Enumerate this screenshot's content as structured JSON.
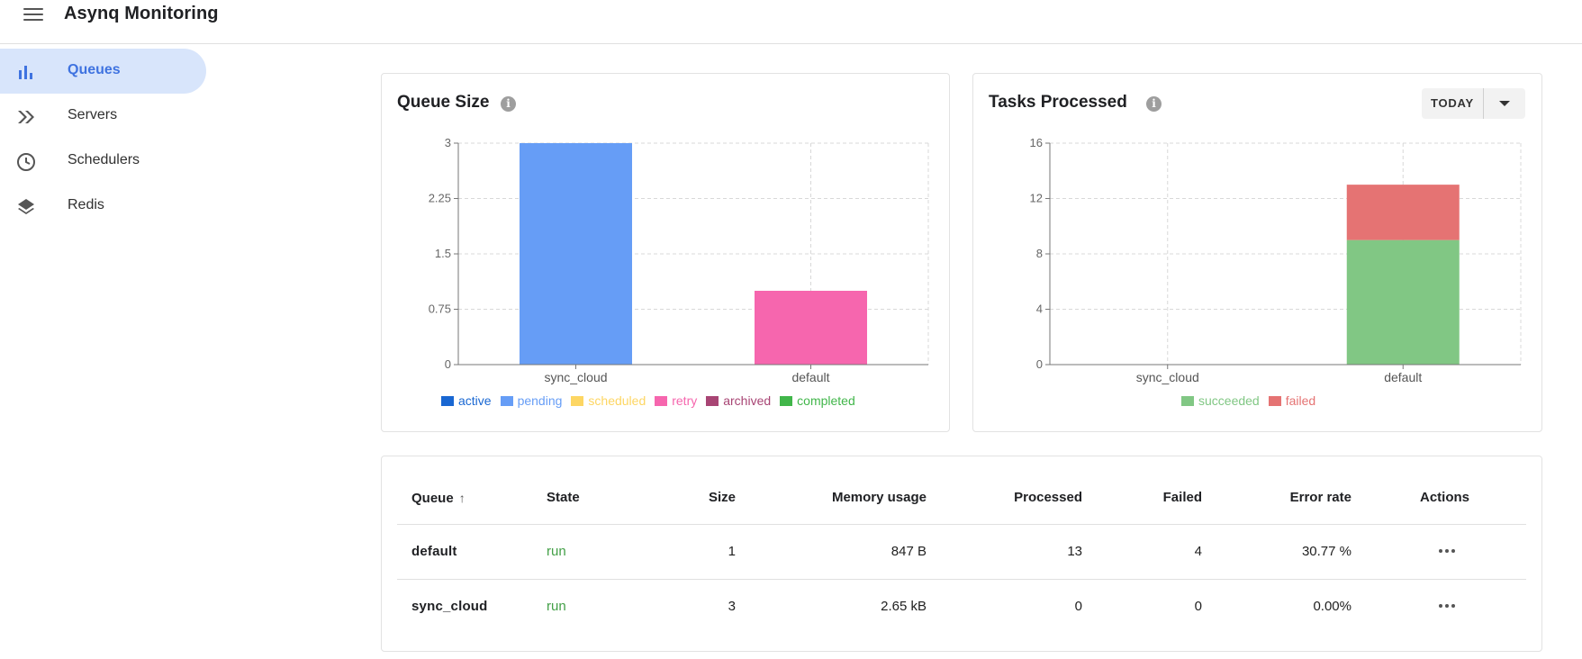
{
  "app": {
    "title": "Asynq Monitoring",
    "menu_icon": "menu-icon"
  },
  "sidebar": {
    "items": [
      {
        "label": "Queues",
        "icon": "bar-chart-icon",
        "active": true
      },
      {
        "label": "Servers",
        "icon": "double-chevron-icon",
        "active": false
      },
      {
        "label": "Schedulers",
        "icon": "clock-icon",
        "active": false
      },
      {
        "label": "Redis",
        "icon": "layers-icon",
        "active": false
      }
    ]
  },
  "queue_size_card": {
    "title": "Queue Size",
    "info_icon": "info-icon"
  },
  "tasks_processed_card": {
    "title": "Tasks Processed",
    "info_icon": "info-icon",
    "range_label": "TODAY"
  },
  "chart_data": [
    {
      "type": "bar",
      "title": "Queue Size",
      "categories": [
        "sync_cloud",
        "default"
      ],
      "ylim": [
        0,
        3
      ],
      "yticks": [
        "0",
        "0.75",
        "1.5",
        "2.25",
        "3"
      ],
      "stacked": true,
      "grid": true,
      "legend_position": "bottom",
      "series": [
        {
          "name": "active",
          "color": "#1967d2",
          "values": [
            0,
            0
          ]
        },
        {
          "name": "pending",
          "color": "#669df6",
          "values": [
            3,
            0
          ]
        },
        {
          "name": "scheduled",
          "color": "#fdd663",
          "values": [
            0,
            0
          ]
        },
        {
          "name": "retry",
          "color": "#f666ae",
          "values": [
            0,
            1
          ]
        },
        {
          "name": "archived",
          "color": "#a84574",
          "values": [
            0,
            0
          ]
        },
        {
          "name": "completed",
          "color": "#41b64a",
          "values": [
            0,
            0
          ]
        }
      ]
    },
    {
      "type": "bar",
      "title": "Tasks Processed",
      "categories": [
        "sync_cloud",
        "default"
      ],
      "ylim": [
        0,
        16
      ],
      "yticks": [
        "0",
        "4",
        "8",
        "12",
        "16"
      ],
      "stacked": true,
      "grid": true,
      "legend_position": "bottom",
      "series": [
        {
          "name": "succeeded",
          "color": "#81c784",
          "values": [
            0,
            9
          ]
        },
        {
          "name": "failed",
          "color": "#e57373",
          "values": [
            0,
            4
          ]
        }
      ]
    }
  ],
  "table": {
    "headers": {
      "queue": "Queue",
      "state": "State",
      "size": "Size",
      "memory": "Memory usage",
      "processed": "Processed",
      "failed": "Failed",
      "error_rate": "Error rate",
      "actions": "Actions"
    },
    "sort_icon": "arrow-up-icon",
    "rows": [
      {
        "queue": "default",
        "state": "run",
        "size": "1",
        "memory": "847 B",
        "processed": "13",
        "failed": "4",
        "error_rate": "30.77 %"
      },
      {
        "queue": "sync_cloud",
        "state": "run",
        "size": "3",
        "memory": "2.65 kB",
        "processed": "0",
        "failed": "0",
        "error_rate": "0.00%"
      }
    ]
  }
}
